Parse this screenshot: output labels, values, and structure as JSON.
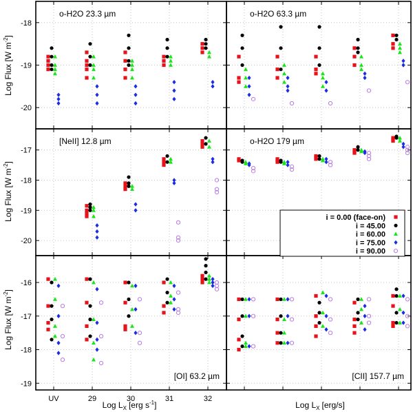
{
  "chart_data": {
    "type": "scatter",
    "x_categories": [
      "UV",
      "29",
      "30",
      "31",
      "32"
    ],
    "x_label": "Log L",
    "x_label_sub": "X",
    "x_label_units_left": "[erg s",
    "x_label_units_left_sup": "-1",
    "x_label_units_left_close": "]",
    "x_label_units_right": "[erg/s]",
    "y_label": "Log Flux [W m",
    "y_label_sup": "-2",
    "y_label_close": "]",
    "colors": {
      "i0": "#e8131a",
      "i45": "#000000",
      "i60": "#19e619",
      "i75": "#1a2de0",
      "i90": "#b87ae6"
    },
    "legend": {
      "placement": "right-middle",
      "entries": [
        {
          "key": "i0",
          "label": "i = 0.00 (face-on)"
        },
        {
          "key": "i45",
          "label": "i = 45.00"
        },
        {
          "key": "i60",
          "label": "i = 60.00"
        },
        {
          "key": "i75",
          "label": "i = 75.00"
        },
        {
          "key": "i90",
          "label": "i = 90.00"
        }
      ]
    },
    "panels": [
      {
        "id": "oh2o-23",
        "title": "o-H2O 23.3 µm",
        "title_pos": "top-left",
        "yrange": [
          -20.5,
          -17.5
        ],
        "y_ticks": [
          "-18",
          "-19",
          "-20"
        ],
        "y_ticks_show": [
          true,
          true,
          true
        ],
        "show_x_ticks": false,
        "groups": [
          {
            "i0": [
              -18.8,
              -18.9,
              -19.0,
              -19.1
            ],
            "i45": [
              -18.6,
              -18.8,
              -19.0,
              -19.1
            ],
            "i60": [
              -18.8,
              -19.0,
              -19.1,
              -19.2
            ],
            "i75": [
              -19.7,
              -19.8,
              -19.9
            ],
            "i90": []
          },
          {
            "i0": [
              -18.7,
              -18.9,
              -19.0,
              -19.1,
              -19.3
            ],
            "i45": [
              -18.5,
              -18.8,
              -19.0
            ],
            "i60": [
              -18.8,
              -19.0,
              -19.1,
              -19.3
            ],
            "i75": [
              -19.5,
              -19.7,
              -19.9
            ],
            "i90": []
          },
          {
            "i0": [
              -18.7,
              -18.9,
              -19.1,
              -19.3
            ],
            "i45": [
              -18.3,
              -18.6,
              -18.9,
              -19.0
            ],
            "i60": [
              -18.9,
              -19.0,
              -19.1,
              -19.3
            ],
            "i75": [
              -19.5,
              -19.7,
              -19.9
            ],
            "i90": []
          },
          {
            "i0": [
              -18.8,
              -18.9,
              -19.0
            ],
            "i45": [
              -18.4,
              -18.6,
              -18.8
            ],
            "i60": [
              -18.8,
              -18.9,
              -19.0
            ],
            "i75": [
              -19.4,
              -19.6,
              -19.8
            ],
            "i90": []
          },
          {
            "i0": [
              -18.5,
              -18.6,
              -18.7
            ],
            "i45": [
              -18.4,
              -18.5,
              -18.6
            ],
            "i60": [
              -18.7,
              -18.8
            ],
            "i75": [
              -19.4,
              -19.5
            ],
            "i90": []
          }
        ]
      },
      {
        "id": "oh2o-63",
        "title": "o-H2O 63.3 µm",
        "title_pos": "top-left",
        "yrange": [
          -20.5,
          -17.5
        ],
        "y_ticks": [
          "-18",
          "-19",
          "-20"
        ],
        "y_ticks_show": [
          false,
          false,
          false
        ],
        "show_x_ticks": false,
        "groups": [
          {
            "i0": [
              -18.8,
              -19.3,
              -19.4
            ],
            "i45": [
              -18.3,
              -18.6,
              -19.0
            ],
            "i60": [
              -19.1,
              -19.3,
              -19.5
            ],
            "i75": [
              -19.3,
              -19.5,
              -19.7
            ],
            "i90": [
              -19.8
            ]
          },
          {
            "i0": [
              -18.8,
              -19.1,
              -19.3
            ],
            "i45": [
              -18.1,
              -18.6,
              -19.1
            ],
            "i60": [
              -19.0,
              -19.2,
              -19.4
            ],
            "i75": [
              -19.3,
              -19.5,
              -19.6
            ],
            "i90": [
              -19.9
            ]
          },
          {
            "i0": [
              -18.8,
              -19.1,
              -19.2
            ],
            "i45": [
              -18.1,
              -18.6,
              -19.0
            ],
            "i60": [
              -19.2,
              -19.3,
              -19.5
            ],
            "i75": [
              -19.4,
              -19.6
            ],
            "i90": [
              -19.9
            ]
          },
          {
            "i0": [
              -18.6,
              -18.8,
              -19.0
            ],
            "i45": [
              -18.4,
              -18.6,
              -18.7
            ],
            "i60": [
              -18.8,
              -19.0,
              -19.1
            ],
            "i75": [
              -19.2,
              -19.3
            ],
            "i90": [
              -19.6
            ]
          },
          {
            "i0": [
              -18.3,
              -18.5,
              -18.6
            ],
            "i45": [
              -18.3,
              -18.4
            ],
            "i60": [
              -18.5,
              -18.6,
              -18.7
            ],
            "i75": [
              -18.9,
              -19.0
            ],
            "i90": [
              -19.4
            ]
          }
        ]
      },
      {
        "id": "neii-12",
        "title": "[NeII] 12.8 µm",
        "title_pos": "top-left",
        "yrange": [
          -20.5,
          -16.3
        ],
        "y_ticks": [
          "-17",
          "-18",
          "-19",
          "-20"
        ],
        "y_ticks_show": [
          true,
          true,
          true,
          true
        ],
        "show_x_ticks": false,
        "groups": [
          {
            "i0": [],
            "i45": [],
            "i60": [],
            "i75": [],
            "i90": []
          },
          {
            "i0": [
              -18.85,
              -19.0,
              -19.1,
              -19.2
            ],
            "i45": [
              -18.8,
              -18.9,
              -19.0
            ],
            "i60": [
              -18.9,
              -19.0,
              -19.2
            ],
            "i75": [
              -19.5,
              -19.7,
              -19.9
            ],
            "i90": []
          },
          {
            "i0": [
              -18.1,
              -18.2,
              -18.3
            ],
            "i45": [
              -17.9,
              -18.1,
              -18.2
            ],
            "i60": [
              -18.2,
              -18.3
            ],
            "i75": [
              -18.8,
              -19.0
            ],
            "i90": []
          },
          {
            "i0": [
              -17.3,
              -17.4,
              -17.5
            ],
            "i45": [
              -17.2,
              -17.4
            ],
            "i60": [
              -17.3,
              -17.4
            ],
            "i75": [
              -18.0,
              -18.1
            ],
            "i90": [
              -19.4,
              -19.9,
              -20.0
            ]
          },
          {
            "i0": [
              -16.7,
              -16.8,
              -16.9
            ],
            "i45": [
              -16.6,
              -16.8
            ],
            "i60": [
              -16.7,
              -16.9
            ],
            "i75": [
              -17.3,
              -17.4
            ],
            "i90": [
              -18.0,
              -18.3,
              -18.4
            ]
          }
        ]
      },
      {
        "id": "oh2o-179",
        "title": "o-H2O 179 µm",
        "title_pos": "top-left",
        "yrange": [
          -20.5,
          -16.3
        ],
        "y_ticks": [
          "-17",
          "-18",
          "-19",
          "-20"
        ],
        "y_ticks_show": [
          false,
          false,
          false,
          false
        ],
        "show_x_ticks": false,
        "groups": [
          {
            "i0": [
              -17.3,
              -17.35
            ],
            "i45": [
              -17.35,
              -17.4
            ],
            "i60": [
              -17.4,
              -17.45
            ],
            "i75": [
              -17.45,
              -17.5
            ],
            "i90": [
              -17.6,
              -17.7
            ]
          },
          {
            "i0": [
              -17.3,
              -17.35,
              -17.4
            ],
            "i45": [
              -17.35,
              -17.4
            ],
            "i60": [
              -17.4,
              -17.45
            ],
            "i75": [
              -17.4,
              -17.5
            ],
            "i90": [
              -17.55,
              -17.65
            ]
          },
          {
            "i0": [
              -17.2,
              -17.25,
              -17.3
            ],
            "i45": [
              -17.2,
              -17.3
            ],
            "i60": [
              -17.3,
              -17.35
            ],
            "i75": [
              -17.3,
              -17.4
            ],
            "i90": [
              -17.4,
              -17.5
            ]
          },
          {
            "i0": [
              -17.0,
              -17.05,
              -17.1
            ],
            "i45": [
              -16.9,
              -17.0
            ],
            "i60": [
              -17.0,
              -17.05
            ],
            "i75": [
              -17.05,
              -17.1
            ],
            "i90": [
              -17.1,
              -17.2,
              -17.3
            ]
          },
          {
            "i0": [
              -16.6,
              -16.65,
              -16.7
            ],
            "i45": [
              -16.55,
              -16.6
            ],
            "i60": [
              -16.6,
              -16.7
            ],
            "i75": [
              -16.8,
              -16.9
            ],
            "i90": [
              -16.9,
              -17.0,
              -17.1
            ]
          }
        ]
      },
      {
        "id": "oi-63",
        "title": "[OI] 63.2 µm",
        "title_pos": "bottom-right",
        "yrange": [
          -19.2,
          -15.2
        ],
        "y_ticks": [
          "-16",
          "-17",
          "-18",
          "-19"
        ],
        "y_ticks_show": [
          true,
          true,
          true,
          true
        ],
        "show_x_ticks": true,
        "groups": [
          {
            "i0": [
              -15.9,
              -16.7,
              -17.2,
              -17.4
            ],
            "i45": [
              -16.0,
              -16.7,
              -17.1,
              -17.7
            ],
            "i60": [
              -15.9,
              -16.5,
              -17.3,
              -17.6
            ],
            "i75": [
              -16.1,
              -17.0,
              -17.8,
              -18.1
            ],
            "i90": [
              -16.7,
              -17.6,
              -18.3
            ]
          },
          {
            "i0": [
              -15.9,
              -16.6,
              -17.3,
              -17.7
            ],
            "i45": [
              -15.9,
              -16.7,
              -17.1,
              -17.6
            ],
            "i60": [
              -16.0,
              -17.1,
              -17.8,
              -18.3
            ],
            "i75": [
              -16.2,
              -17.2,
              -17.7,
              -18.0
            ],
            "i90": [
              -16.6,
              -17.6,
              -18.4
            ]
          },
          {
            "i0": [
              -16.0,
              -16.6,
              -17.3,
              -17.4
            ],
            "i45": [
              -16.0,
              -16.5,
              -17.0
            ],
            "i60": [
              -16.1,
              -16.8,
              -17.3
            ],
            "i75": [
              -16.1,
              -16.8,
              -17.5
            ],
            "i90": [
              -16.5,
              -17.5,
              -17.8
            ]
          },
          {
            "i0": [
              -16.0,
              -16.7,
              -16.9
            ],
            "i45": [
              -15.9,
              -16.3,
              -16.6
            ],
            "i60": [
              -16.0,
              -16.4,
              -16.6
            ],
            "i75": [
              -16.1,
              -16.5,
              -16.8
            ],
            "i90": [
              -16.3,
              -16.8,
              -16.9
            ]
          },
          {
            "i0": [
              -15.8,
              -15.9,
              -16.0
            ],
            "i45": [
              -15.3,
              -15.5,
              -15.7,
              -15.9
            ],
            "i60": [
              -15.8,
              -15.9,
              -16.0
            ],
            "i75": [
              -15.9,
              -16.0,
              -16.1
            ],
            "i90": [
              -16.0,
              -16.1,
              -16.2
            ]
          }
        ]
      },
      {
        "id": "cii-157",
        "title": "[CII] 157.7 µm",
        "title_pos": "bottom-right",
        "yrange": [
          -19.2,
          -15.2
        ],
        "y_ticks": [
          "-16",
          "-17",
          "-18",
          "-19"
        ],
        "y_ticks_show": [
          false,
          false,
          false,
          false
        ],
        "show_x_ticks": false,
        "groups": [
          {
            "i0": [
              -16.5,
              -17.1,
              -17.7,
              -18.0
            ],
            "i45": [
              -16.5,
              -17.0,
              -17.6,
              -17.9
            ],
            "i60": [
              -16.5,
              -17.0,
              -17.8,
              -17.9
            ],
            "i75": [
              -16.5,
              -17.0,
              -17.9
            ],
            "i90": [
              -16.5,
              -17.0,
              -17.9
            ]
          },
          {
            "i0": [
              -16.5,
              -17.1,
              -17.5,
              -17.8
            ],
            "i45": [
              -16.5,
              -17.0,
              -17.5,
              -17.8
            ],
            "i60": [
              -16.5,
              -17.1,
              -17.5,
              -17.8
            ],
            "i75": [
              -16.5,
              -17.0,
              -17.8
            ],
            "i90": [
              -16.5,
              -17.1,
              -17.8
            ]
          },
          {
            "i0": [
              -16.4,
              -17.0,
              -17.3,
              -17.6
            ],
            "i45": [
              -16.6,
              -16.9,
              -17.2
            ],
            "i60": [
              -16.3,
              -16.9,
              -17.3
            ],
            "i75": [
              -16.4,
              -17.0,
              -17.4
            ],
            "i90": [
              -16.5,
              -17.1,
              -17.5
            ]
          },
          {
            "i0": [
              -16.6,
              -17.1,
              -17.3,
              -17.5
            ],
            "i45": [
              -16.5,
              -16.9,
              -17.1
            ],
            "i60": [
              -16.5,
              -16.8,
              -17.2
            ],
            "i75": [
              -16.7,
              -17.0,
              -17.4
            ],
            "i90": [
              -16.5,
              -17.0,
              -17.2
            ]
          },
          {
            "i0": [
              -16.4,
              -16.7,
              -17.2,
              -17.3
            ],
            "i45": [
              -16.2,
              -16.4,
              -16.9,
              -17.2
            ],
            "i60": [
              -16.4,
              -16.8,
              -17.2
            ],
            "i75": [
              -16.4,
              -16.9,
              -17.2
            ],
            "i90": [
              -16.5,
              -17.0,
              -17.3
            ]
          }
        ]
      }
    ]
  }
}
